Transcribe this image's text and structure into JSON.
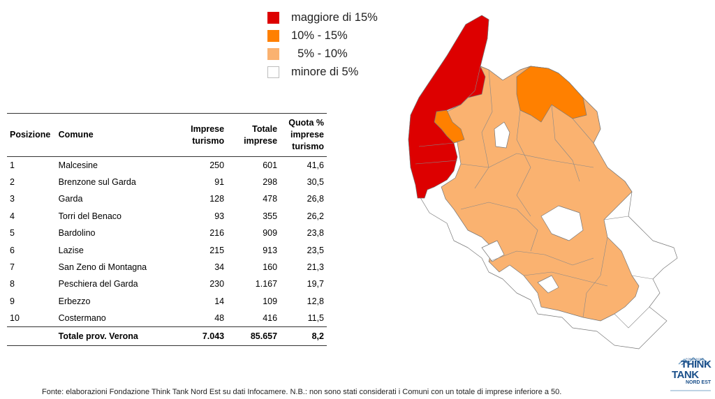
{
  "legend": {
    "items": [
      {
        "label": "maggiore di 15%",
        "color": "#dd0000"
      },
      {
        "label": "10% - 15%",
        "color": "#ff8000"
      },
      {
        "label": "  5% - 10%",
        "color": "#fab270"
      },
      {
        "label": "minore di 5%",
        "color": "#ffffff"
      }
    ]
  },
  "table": {
    "headers": {
      "position": "Posizione",
      "comune": "Comune",
      "imprese": [
        "Imprese",
        "turismo"
      ],
      "totale": [
        "Totale",
        "imprese"
      ],
      "quota": [
        "Quota %",
        "imprese",
        "turismo"
      ]
    },
    "rows": [
      {
        "pos": "1",
        "comune": "Malcesine",
        "imprese": "250",
        "totale": "601",
        "quota": "41,6"
      },
      {
        "pos": "2",
        "comune": "Brenzone sul Garda",
        "imprese": "91",
        "totale": "298",
        "quota": "30,5"
      },
      {
        "pos": "3",
        "comune": "Garda",
        "imprese": "128",
        "totale": "478",
        "quota": "26,8"
      },
      {
        "pos": "4",
        "comune": "Torri del Benaco",
        "imprese": "93",
        "totale": "355",
        "quota": "26,2"
      },
      {
        "pos": "5",
        "comune": "Bardolino",
        "imprese": "216",
        "totale": "909",
        "quota": "23,8"
      },
      {
        "pos": "6",
        "comune": "Lazise",
        "imprese": "215",
        "totale": "913",
        "quota": "23,5"
      },
      {
        "pos": "7",
        "comune": "San Zeno di Montagna",
        "imprese": "34",
        "totale": "160",
        "quota": "21,3"
      },
      {
        "pos": "8",
        "comune": "Peschiera del Garda",
        "imprese": "230",
        "totale": "1.167",
        "quota": "19,7"
      },
      {
        "pos": "9",
        "comune": "Erbezzo",
        "imprese": "14",
        "totale": "109",
        "quota": "12,8"
      },
      {
        "pos": "10",
        "comune": "Costermano",
        "imprese": "48",
        "totale": "416",
        "quota": "11,5"
      }
    ],
    "total": {
      "label": "Totale prov. Verona",
      "imprese": "7.043",
      "totale": "85.657",
      "quota": "8,2"
    }
  },
  "map": {
    "border_color": "#777777",
    "colors": {
      "high": "#dd0000",
      "mid": "#ff8000",
      "low": "#fab270",
      "none": "#ffffff"
    }
  },
  "footer": {
    "source": "Fonte: elaborazioni Fondazione Think Tank Nord Est su dati Infocamere. N.B.: non sono stati considerati i Comuni con un totale di imprese inferiore a 50."
  },
  "logo": {
    "top": "FONDAZIONE",
    "line1": "THINK",
    "line2": "TANK",
    "line3": "NORD EST",
    "color": "#1a4f8a"
  }
}
